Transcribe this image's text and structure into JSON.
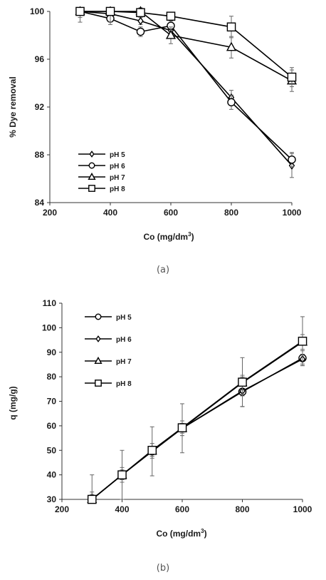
{
  "chart_data": [
    {
      "panel_label": "(a)",
      "type": "line",
      "title": "",
      "xlabel": "Co (mg/dm",
      "xlabel_sup": "3",
      "xlabel_end": ")",
      "ylabel": "% Dye removal",
      "xlim": [
        200,
        1000
      ],
      "ylim": [
        84,
        100
      ],
      "xticks": [
        200,
        400,
        600,
        800,
        1000
      ],
      "yticks": [
        84,
        88,
        92,
        96,
        100
      ],
      "grid": false,
      "legend_position": "bottom-left",
      "x": [
        300,
        400,
        500,
        600,
        800,
        1000
      ],
      "series": [
        {
          "name": "pH 5",
          "marker": "diamond",
          "values": [
            100,
            99.8,
            99.2,
            98.4,
            92.8,
            87.1
          ],
          "errors": [
            0.3,
            0.3,
            0.3,
            0.5,
            0.6,
            1.0
          ]
        },
        {
          "name": "pH 6",
          "marker": "circle",
          "values": [
            100,
            99.4,
            98.3,
            98.8,
            92.4,
            87.6
          ],
          "errors": [
            0.5,
            0.5,
            0.4,
            0.4,
            0.6,
            0.6
          ]
        },
        {
          "name": "pH 7",
          "marker": "triangle",
          "values": [
            100,
            100,
            100,
            98.0,
            97.0,
            94.2
          ],
          "errors": [
            0.3,
            0.3,
            0.3,
            0.7,
            0.9,
            0.9
          ]
        },
        {
          "name": "pH 8",
          "marker": "square",
          "values": [
            100,
            100,
            99.9,
            99.6,
            98.7,
            94.5
          ],
          "errors": [
            0.9,
            0.9,
            0.3,
            0.3,
            0.9,
            0.8
          ]
        }
      ]
    },
    {
      "panel_label": "(b)",
      "type": "line",
      "title": "",
      "xlabel": "Co (mg/dm",
      "xlabel_sup": "3",
      "xlabel_end": ")",
      "ylabel": "q (mg/g)",
      "xlim": [
        200,
        1000
      ],
      "ylim": [
        30,
        110
      ],
      "xticks": [
        200,
        400,
        600,
        800,
        1000
      ],
      "yticks": [
        30,
        40,
        50,
        60,
        70,
        80,
        90,
        100,
        110
      ],
      "grid": false,
      "legend_position": "top-left",
      "x": [
        300,
        400,
        500,
        600,
        800,
        1000
      ],
      "series": [
        {
          "name": "pH 5",
          "marker": "circle",
          "values": [
            30,
            40,
            49.6,
            59,
            73.9,
            87.6
          ],
          "errors": [
            10,
            10,
            10,
            10,
            6,
            3
          ]
        },
        {
          "name": "pH 6",
          "marker": "diamond",
          "values": [
            30,
            40,
            49.6,
            59,
            74.2,
            87.2
          ],
          "errors": [
            2,
            2,
            2,
            2,
            2,
            2
          ]
        },
        {
          "name": "pH 7",
          "marker": "triangle",
          "values": [
            30,
            40,
            49.8,
            59,
            77.6,
            94.2
          ],
          "errors": [
            3,
            3,
            3,
            3,
            3,
            3
          ]
        },
        {
          "name": "pH 8",
          "marker": "square",
          "values": [
            30,
            40,
            50,
            59.2,
            77.8,
            94.5
          ],
          "errors": [
            1,
            1,
            1,
            1,
            10,
            10
          ]
        }
      ]
    }
  ]
}
